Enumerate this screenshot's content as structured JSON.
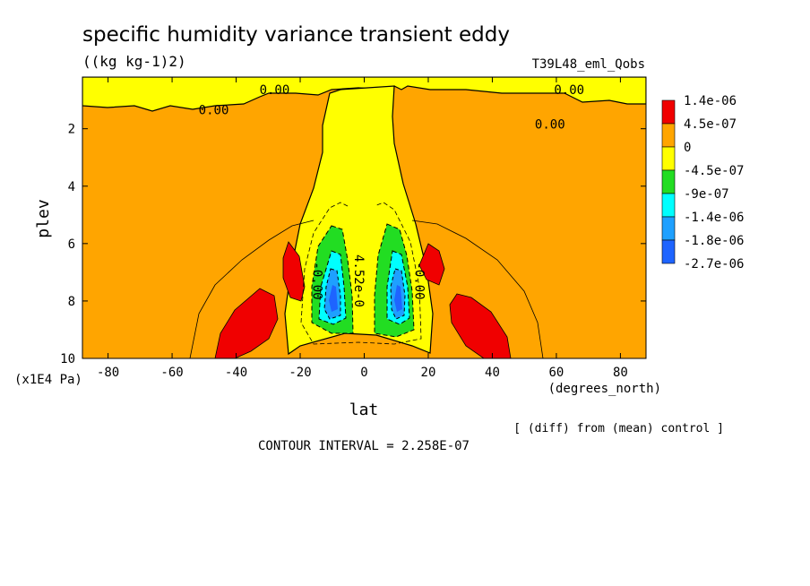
{
  "chart_data": {
    "type": "contour",
    "title": "specific humidity variance transient eddy",
    "units": "((kg kg-1)2)",
    "run_label": "T39L48_eml_Qobs",
    "xlabel": "lat",
    "x_units": "(degrees_north)",
    "ylabel": "plev",
    "y_units": "(x1E4 Pa)",
    "diff_note": "[ (diff) from (mean) control ]",
    "contour_interval": "CONTOUR INTERVAL = 2.258E-07",
    "xlim": [
      -88,
      88
    ],
    "ylim": [
      10,
      0.2
    ],
    "x_ticks": [
      -80,
      -60,
      -40,
      -20,
      0,
      20,
      40,
      60,
      80
    ],
    "x_tick_labels": [
      "-80",
      "-60",
      "-40",
      "-20",
      "0",
      "20",
      "40",
      "60",
      "80"
    ],
    "y_ticks": [
      2,
      4,
      6,
      8,
      10
    ],
    "y_tick_labels": [
      "2",
      "4",
      "6",
      "8",
      "10"
    ],
    "legend": {
      "labels": [
        "1.4e-06",
        "4.5e-07",
        "0",
        "-4.5e-07",
        "-9e-07",
        "-1.4e-06",
        "-1.8e-06",
        "-2.7e-06"
      ],
      "colors": [
        "#f00000",
        "#ffa500",
        "#ffff00",
        "#22dd22",
        "#00ffff",
        "#1ea0ff",
        "#1e64ff"
      ]
    },
    "contour_labels": [
      {
        "text": "0.00",
        "lat": -28,
        "plev": 0.8
      },
      {
        "text": "0.00",
        "lat": -47,
        "plev": 1.5
      },
      {
        "text": "0.00",
        "lat": 64,
        "plev": 0.8
      },
      {
        "text": "0.00",
        "lat": 58,
        "plev": 2.0
      },
      {
        "text": "4.52e-0",
        "lat": -3,
        "plev": 7.3
      },
      {
        "text": "-0.00",
        "lat": -16,
        "plev": 7.3
      },
      {
        "text": "-0.00",
        "lat": 16,
        "plev": 7.3
      }
    ],
    "regions": {
      "background": {
        "level": "0 to 4.5e-07",
        "color": "#ffa500"
      },
      "upper_strip": {
        "level": "-4.5e-07 to 0",
        "color": "#ffff00",
        "plev_range": [
          0.2,
          1.1
        ]
      },
      "central_column": {
        "level": "-4.5e-07 to 0",
        "color": "#ffff00",
        "lat_range": [
          -22,
          22
        ]
      },
      "minima": [
        {
          "lat": -11,
          "plev": 7.6,
          "value_min": "-2.7e-06"
        },
        {
          "lat": 13,
          "plev": 7.6,
          "value_min": "-2.7e-06"
        }
      ],
      "maxima": [
        {
          "lat": -28,
          "plev": 7.2,
          "value_max": "1.4e-06"
        },
        {
          "lat": -38,
          "plev": 9.0,
          "value_max": "1.4e-06"
        },
        {
          "lat": 27,
          "plev": 7.0,
          "value_max": "1.4e-06"
        },
        {
          "lat": 37,
          "plev": 8.8,
          "value_max": "1.4e-06"
        }
      ]
    }
  }
}
